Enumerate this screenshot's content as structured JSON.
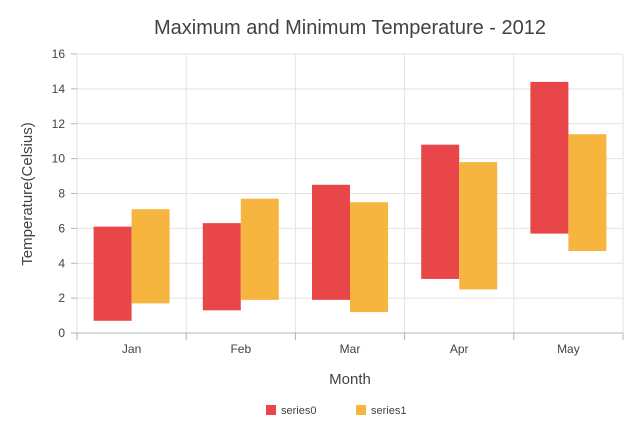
{
  "chart_data": {
    "type": "range-bar",
    "title": "Maximum and Minimum Temperature - 2012",
    "xlabel": "Month",
    "ylabel": "Temperature(Celsius)",
    "categories": [
      "Jan",
      "Feb",
      "Mar",
      "Apr",
      "May"
    ],
    "ylim": [
      0,
      16
    ],
    "yticks": [
      "0",
      "2",
      "4",
      "6",
      "8",
      "10",
      "12",
      "14",
      "16"
    ],
    "grid": true,
    "legend_position": "bottom",
    "series": [
      {
        "name": "series0",
        "color": "#E94649",
        "low": [
          0.7,
          1.3,
          1.9,
          3.1,
          5.7
        ],
        "high": [
          6.1,
          6.3,
          8.5,
          10.8,
          14.4
        ]
      },
      {
        "name": "series1",
        "color": "#F6B53F",
        "low": [
          1.7,
          1.9,
          1.2,
          2.5,
          4.7
        ],
        "high": [
          7.1,
          7.7,
          7.5,
          9.8,
          11.4
        ]
      }
    ]
  }
}
